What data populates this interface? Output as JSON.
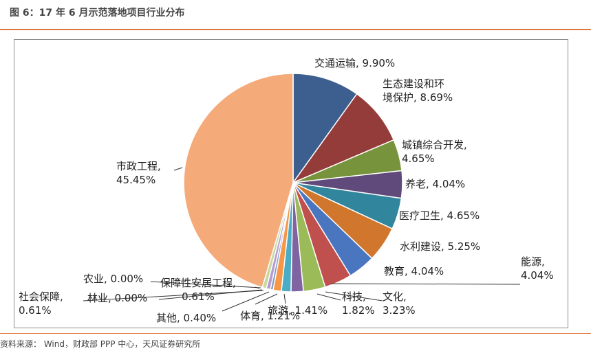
{
  "figure_title": "图 6：17 年 6 月示范落地项目行业分布",
  "source": "资料来源：  Wind，财政部 PPP 中心，天风证券研究所",
  "colors": {
    "accent_rule": "#e07a3a",
    "frame": "#8c8c8c"
  },
  "chart_data": {
    "type": "pie",
    "title": "",
    "slices": [
      {
        "name": "交通运输",
        "value": 9.9,
        "label_lines": [
          "交通运输, 9.90%"
        ],
        "color": "#3d5f8f"
      },
      {
        "name": "生态建设和环境保护",
        "value": 8.69,
        "label_lines": [
          "生态建设和环",
          "境保护, 8.69%"
        ],
        "color": "#943c3a"
      },
      {
        "name": "城镇综合开发",
        "value": 4.65,
        "label_lines": [
          "城镇综合开发,",
          "4.65%"
        ],
        "color": "#77933c"
      },
      {
        "name": "养老",
        "value": 4.04,
        "label_lines": [
          "养老, 4.04%"
        ],
        "color": "#5f4a7b"
      },
      {
        "name": "医疗卫生",
        "value": 4.65,
        "label_lines": [
          "医疗卫生, 4.65%"
        ],
        "color": "#31859c"
      },
      {
        "name": "水利建设",
        "value": 5.25,
        "label_lines": [
          "水利建设, 5.25%"
        ],
        "color": "#d0772d"
      },
      {
        "name": "教育",
        "value": 4.04,
        "label_lines": [
          "教育, 4.04%"
        ],
        "color": "#4a76c0"
      },
      {
        "name": "能源",
        "value": 4.04,
        "label_lines": [
          "能源,",
          "4.04%"
        ],
        "color": "#c0504d"
      },
      {
        "name": "文化",
        "value": 3.23,
        "label_lines": [
          "文化,",
          "3.23%"
        ],
        "color": "#9bbb59"
      },
      {
        "name": "科技",
        "value": 1.82,
        "label_lines": [
          "科技,",
          "1.82%"
        ],
        "color": "#8064a2"
      },
      {
        "name": "旅游",
        "value": 1.41,
        "label_lines": [
          "旅游, 1.41%"
        ],
        "color": "#4bacc6"
      },
      {
        "name": "体育",
        "value": 1.21,
        "label_lines": [
          "体育, 1.21%"
        ],
        "color": "#f79646"
      },
      {
        "name": "其他",
        "value": 0.4,
        "label_lines": [
          "其他, 0.40%"
        ],
        "color": "#7f9ac7"
      },
      {
        "name": "社会保障",
        "value": 0.61,
        "label_lines": [
          "社会保障,",
          "0.61%"
        ],
        "color": "#b89bd0"
      },
      {
        "name": "林业",
        "value": 0.0,
        "label_lines": [
          "林业, 0.00%"
        ],
        "color": "#c6d9a2"
      },
      {
        "name": "农业",
        "value": 0.0,
        "label_lines": [
          "农业, 0.00%"
        ],
        "color": "#c5b4d6"
      },
      {
        "name": "保障性安居工程",
        "value": 0.61,
        "label_lines": [
          "保障性安居工程,",
          "0.61%"
        ],
        "color": "#c9d99e"
      },
      {
        "name": "市政工程",
        "value": 45.45,
        "label_lines": [
          "市政工程,",
          "45.45%"
        ],
        "color": "#f5aa7a"
      }
    ]
  }
}
